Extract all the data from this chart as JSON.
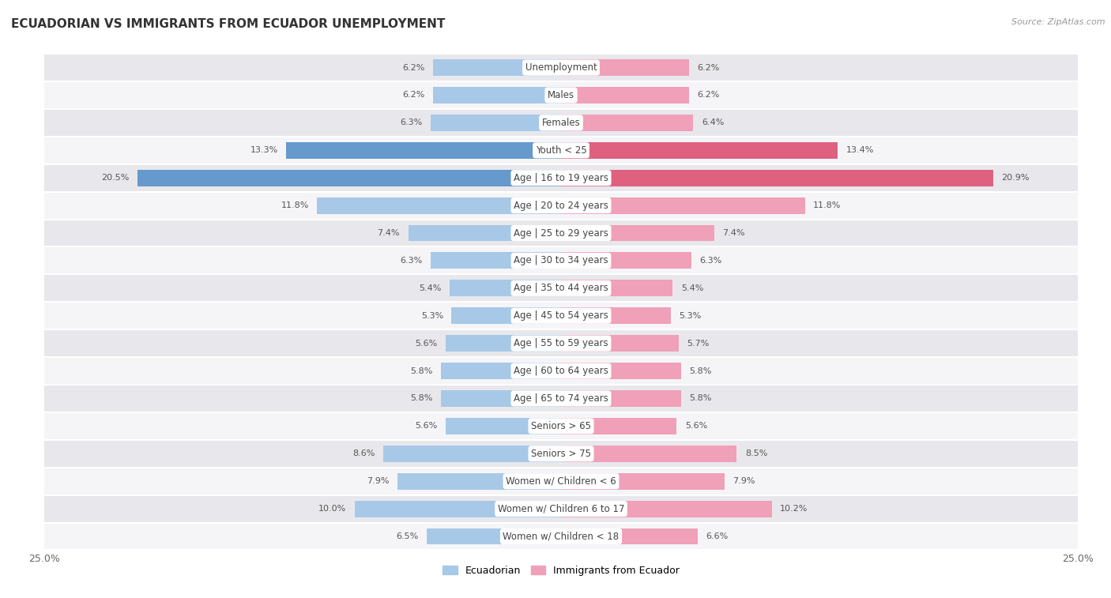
{
  "title": "ECUADORIAN VS IMMIGRANTS FROM ECUADOR UNEMPLOYMENT",
  "source": "Source: ZipAtlas.com",
  "categories": [
    "Unemployment",
    "Males",
    "Females",
    "Youth < 25",
    "Age | 16 to 19 years",
    "Age | 20 to 24 years",
    "Age | 25 to 29 years",
    "Age | 30 to 34 years",
    "Age | 35 to 44 years",
    "Age | 45 to 54 years",
    "Age | 55 to 59 years",
    "Age | 60 to 64 years",
    "Age | 65 to 74 years",
    "Seniors > 65",
    "Seniors > 75",
    "Women w/ Children < 6",
    "Women w/ Children 6 to 17",
    "Women w/ Children < 18"
  ],
  "ecuadorian": [
    6.2,
    6.2,
    6.3,
    13.3,
    20.5,
    11.8,
    7.4,
    6.3,
    5.4,
    5.3,
    5.6,
    5.8,
    5.8,
    5.6,
    8.6,
    7.9,
    10.0,
    6.5
  ],
  "immigrants": [
    6.2,
    6.2,
    6.4,
    13.4,
    20.9,
    11.8,
    7.4,
    6.3,
    5.4,
    5.3,
    5.7,
    5.8,
    5.8,
    5.6,
    8.5,
    7.9,
    10.2,
    6.6
  ],
  "ecuadorian_color": "#a8c8e8",
  "immigrants_color": "#f0a0b8",
  "highlight_ecuadorian_color": "#6699cc",
  "highlight_immigrants_color": "#e06080",
  "row_bg_dark": "#e8e8ec",
  "row_bg_light": "#f5f5f8",
  "bar_height": 0.6,
  "xlim": 25.0,
  "legend_ecuadorian": "Ecuadorian",
  "legend_immigrants": "Immigrants from Ecuador",
  "highlight_rows": [
    3,
    4
  ],
  "value_color": "#555555",
  "label_color": "#444444"
}
